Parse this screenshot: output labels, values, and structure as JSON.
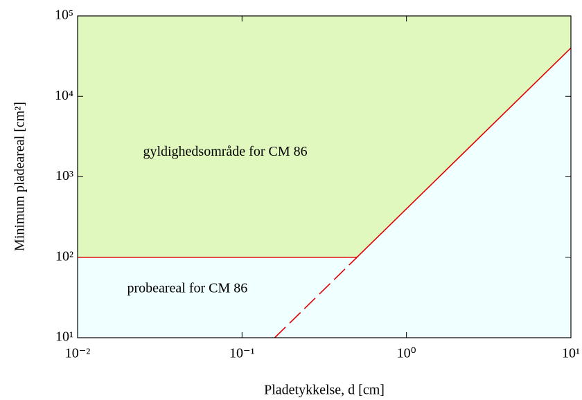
{
  "chart_data": {
    "type": "line",
    "xlabel": "Pladetykkelse, d [cm]",
    "ylabel": "Minimum pladeareal [cm²]",
    "xscale": "log",
    "yscale": "log",
    "xlim": [
      0.01,
      10
    ],
    "ylim": [
      10,
      100000
    ],
    "xticks": [
      {
        "value": 0.01,
        "label": "10⁻²"
      },
      {
        "value": 0.1,
        "label": "10⁻¹"
      },
      {
        "value": 1,
        "label": "10⁰"
      },
      {
        "value": 10,
        "label": "10¹"
      }
    ],
    "yticks": [
      {
        "value": 10,
        "label": "10¹"
      },
      {
        "value": 100,
        "label": "10²"
      },
      {
        "value": 1000,
        "label": "10³"
      },
      {
        "value": 10000,
        "label": "10⁴"
      },
      {
        "value": 100000,
        "label": "10⁵"
      }
    ],
    "region_colors": {
      "above": "#e0f7bd",
      "below": "#f0ffff"
    },
    "series": [
      {
        "x": [
          0.01,
          0.5,
          10
        ],
        "values": [
          100,
          100,
          40000
        ],
        "color": "#e00000",
        "dash": false
      },
      {
        "x": [
          0.158,
          0.5
        ],
        "values": [
          10,
          100
        ],
        "color": "#e00000",
        "dash": true
      }
    ],
    "annotations": [
      {
        "text": "gyldighedsområde for CM 86",
        "x": 0.025,
        "y": 2000,
        "color": "#1a1acc"
      },
      {
        "text": "probeareal for CM 86",
        "x": 0.02,
        "y": 40,
        "color": "#1a1acc"
      }
    ]
  }
}
